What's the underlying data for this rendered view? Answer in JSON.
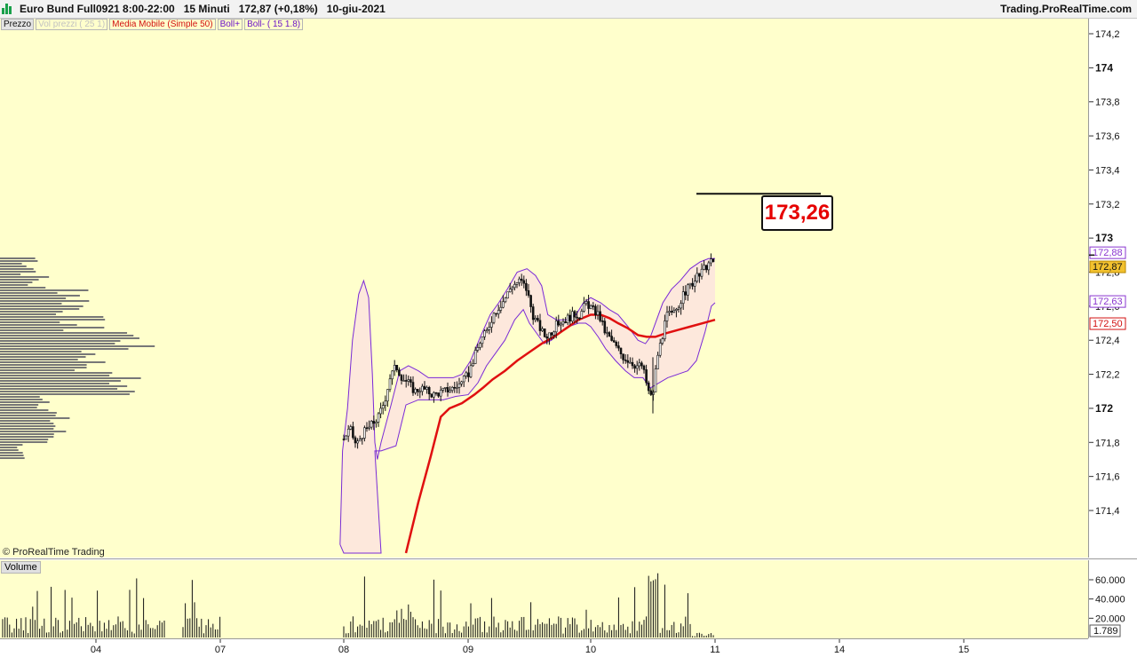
{
  "header": {
    "title": "Euro Bund Full0921 8:00-22:00   15 Minuti   172,87 (+0,18%)   10-giu-2021",
    "brand": "Trading.ProRealTime.com"
  },
  "legend": {
    "price": "Prezzo",
    "volume_profile": "Vol prezzi ( 25 1)",
    "moving_average": "Media Mobile (Simple 50)",
    "boll_plus": "Boll+",
    "boll_minus": "Boll- ( 15 1.8)"
  },
  "volume_panel_label": "Volume",
  "copyright": "© ProRealTime Trading",
  "target_label": "173,26",
  "chart_data": {
    "type": "candlestick",
    "y_ticks": [
      "174,2",
      "174",
      "173,8",
      "173,6",
      "173,4",
      "173,2",
      "173",
      "172,8",
      "172,6",
      "172,4",
      "172,2",
      "172",
      "171,8",
      "171,6",
      "171,4"
    ],
    "y_tick_values": [
      174.2,
      174.0,
      173.8,
      173.6,
      173.4,
      173.2,
      173.0,
      172.8,
      172.6,
      172.4,
      172.2,
      172.0,
      171.8,
      171.6,
      171.4
    ],
    "ylim": [
      171.15,
      174.3
    ],
    "x_ticks": [
      "04",
      "07",
      "08",
      "09",
      "10",
      "11",
      "14",
      "15"
    ],
    "x_tick_values": [
      0,
      1,
      2,
      3,
      4,
      5,
      6,
      7
    ],
    "xlim": [
      -0.75,
      8.0
    ],
    "price_labels": [
      {
        "text": "172,88",
        "value": 172.88,
        "series": "Boll+"
      },
      {
        "text": "172,87",
        "value": 172.87,
        "series": "Prezzo"
      },
      {
        "text": "172,63",
        "value": 172.63,
        "series": "Boll-"
      },
      {
        "text": "172,50",
        "value": 172.5,
        "series": "Media Mobile"
      }
    ],
    "target_level": {
      "value": 173.26,
      "x_from": 4.85,
      "x_to": 5.85
    },
    "close_path": [
      [
        2.0,
        171.82
      ],
      [
        2.05,
        171.88
      ],
      [
        2.1,
        171.78
      ],
      [
        2.15,
        171.85
      ],
      [
        2.22,
        171.9
      ],
      [
        2.28,
        171.95
      ],
      [
        2.33,
        172.05
      ],
      [
        2.37,
        172.18
      ],
      [
        2.42,
        172.25
      ],
      [
        2.47,
        172.18
      ],
      [
        2.52,
        172.15
      ],
      [
        2.57,
        172.1
      ],
      [
        2.62,
        172.12
      ],
      [
        2.67,
        172.1
      ],
      [
        2.72,
        172.08
      ],
      [
        2.8,
        172.1
      ],
      [
        2.88,
        172.12
      ],
      [
        2.95,
        172.15
      ],
      [
        3.0,
        172.2
      ],
      [
        3.05,
        172.3
      ],
      [
        3.1,
        172.4
      ],
      [
        3.15,
        172.45
      ],
      [
        3.2,
        172.55
      ],
      [
        3.25,
        172.6
      ],
      [
        3.3,
        172.65
      ],
      [
        3.35,
        172.72
      ],
      [
        3.42,
        172.75
      ],
      [
        3.47,
        172.7
      ],
      [
        3.52,
        172.55
      ],
      [
        3.57,
        172.48
      ],
      [
        3.62,
        172.42
      ],
      [
        3.67,
        172.45
      ],
      [
        3.72,
        172.5
      ],
      [
        3.78,
        172.52
      ],
      [
        3.85,
        172.55
      ],
      [
        3.9,
        172.55
      ],
      [
        3.95,
        172.62
      ],
      [
        4.0,
        172.58
      ],
      [
        4.05,
        172.55
      ],
      [
        4.1,
        172.45
      ],
      [
        4.15,
        172.4
      ],
      [
        4.2,
        172.35
      ],
      [
        4.25,
        172.3
      ],
      [
        4.3,
        172.28
      ],
      [
        4.35,
        172.25
      ],
      [
        4.4,
        172.25
      ],
      [
        4.45,
        172.1
      ],
      [
        4.48,
        172.05
      ],
      [
        4.52,
        172.3
      ],
      [
        4.56,
        172.42
      ],
      [
        4.6,
        172.55
      ],
      [
        4.65,
        172.55
      ],
      [
        4.7,
        172.62
      ],
      [
        4.76,
        172.7
      ],
      [
        4.82,
        172.75
      ],
      [
        4.88,
        172.8
      ],
      [
        4.93,
        172.85
      ],
      [
        5.0,
        172.87
      ]
    ],
    "boll_upper": [
      [
        1.97,
        171.2
      ],
      [
        1.99,
        171.75
      ],
      [
        2.03,
        172.0
      ],
      [
        2.07,
        172.4
      ],
      [
        2.12,
        172.67
      ],
      [
        2.16,
        172.75
      ],
      [
        2.2,
        172.65
      ],
      [
        2.23,
        172.2
      ],
      [
        2.25,
        171.8
      ],
      [
        2.27,
        171.7
      ],
      [
        2.3,
        171.8
      ],
      [
        2.38,
        172.02
      ],
      [
        2.45,
        172.22
      ],
      [
        2.52,
        172.25
      ],
      [
        2.6,
        172.22
      ],
      [
        2.68,
        172.18
      ],
      [
        2.78,
        172.18
      ],
      [
        2.88,
        172.18
      ],
      [
        2.95,
        172.2
      ],
      [
        3.02,
        172.28
      ],
      [
        3.1,
        172.42
      ],
      [
        3.18,
        172.55
      ],
      [
        3.25,
        172.62
      ],
      [
        3.32,
        172.7
      ],
      [
        3.4,
        172.8
      ],
      [
        3.48,
        172.82
      ],
      [
        3.55,
        172.78
      ],
      [
        3.6,
        172.72
      ],
      [
        3.65,
        172.55
      ],
      [
        3.72,
        172.52
      ],
      [
        3.8,
        172.52
      ],
      [
        3.88,
        172.55
      ],
      [
        3.94,
        172.62
      ],
      [
        4.0,
        172.65
      ],
      [
        4.08,
        172.62
      ],
      [
        4.15,
        172.58
      ],
      [
        4.22,
        172.55
      ],
      [
        4.3,
        172.48
      ],
      [
        4.38,
        172.4
      ],
      [
        4.44,
        172.38
      ],
      [
        4.48,
        172.42
      ],
      [
        4.52,
        172.5
      ],
      [
        4.58,
        172.62
      ],
      [
        4.65,
        172.7
      ],
      [
        4.72,
        172.75
      ],
      [
        4.8,
        172.82
      ],
      [
        4.88,
        172.86
      ],
      [
        4.95,
        172.88
      ],
      [
        5.0,
        172.88
      ]
    ],
    "boll_lower": [
      [
        1.97,
        171.2
      ],
      [
        2.0,
        171.15
      ],
      [
        2.3,
        171.15
      ],
      [
        2.25,
        171.75
      ],
      [
        2.3,
        171.75
      ],
      [
        2.42,
        171.78
      ],
      [
        2.5,
        172.02
      ],
      [
        2.6,
        172.05
      ],
      [
        2.7,
        172.05
      ],
      [
        2.8,
        172.05
      ],
      [
        2.9,
        172.07
      ],
      [
        3.0,
        172.08
      ],
      [
        3.08,
        172.15
      ],
      [
        3.15,
        172.25
      ],
      [
        3.22,
        172.32
      ],
      [
        3.3,
        172.4
      ],
      [
        3.38,
        172.52
      ],
      [
        3.45,
        172.58
      ],
      [
        3.5,
        172.5
      ],
      [
        3.55,
        172.45
      ],
      [
        3.62,
        172.38
      ],
      [
        3.68,
        172.4
      ],
      [
        3.75,
        172.45
      ],
      [
        3.82,
        172.48
      ],
      [
        3.9,
        172.5
      ],
      [
        3.96,
        172.5
      ],
      [
        4.0,
        172.48
      ],
      [
        4.06,
        172.42
      ],
      [
        4.12,
        172.35
      ],
      [
        4.2,
        172.28
      ],
      [
        4.28,
        172.22
      ],
      [
        4.35,
        172.18
      ],
      [
        4.42,
        172.18
      ],
      [
        4.48,
        172.12
      ],
      [
        4.55,
        172.15
      ],
      [
        4.62,
        172.18
      ],
      [
        4.7,
        172.2
      ],
      [
        4.78,
        172.22
      ],
      [
        4.85,
        172.28
      ],
      [
        4.92,
        172.45
      ],
      [
        4.97,
        172.6
      ],
      [
        5.0,
        172.62
      ]
    ],
    "moving_average": [
      [
        2.5,
        171.15
      ],
      [
        2.6,
        171.45
      ],
      [
        2.7,
        171.72
      ],
      [
        2.78,
        171.95
      ],
      [
        2.85,
        172.0
      ],
      [
        2.95,
        172.03
      ],
      [
        3.05,
        172.08
      ],
      [
        3.12,
        172.12
      ],
      [
        3.2,
        172.17
      ],
      [
        3.3,
        172.22
      ],
      [
        3.4,
        172.28
      ],
      [
        3.5,
        172.33
      ],
      [
        3.6,
        172.38
      ],
      [
        3.7,
        172.42
      ],
      [
        3.8,
        172.47
      ],
      [
        3.9,
        172.52
      ],
      [
        4.0,
        172.55
      ],
      [
        4.08,
        172.55
      ],
      [
        4.15,
        172.53
      ],
      [
        4.22,
        172.5
      ],
      [
        4.3,
        172.47
      ],
      [
        4.38,
        172.43
      ],
      [
        4.45,
        172.42
      ],
      [
        4.52,
        172.42
      ],
      [
        4.6,
        172.44
      ],
      [
        4.7,
        172.46
      ],
      [
        4.8,
        172.48
      ],
      [
        4.9,
        172.5
      ],
      [
        5.0,
        172.52
      ]
    ],
    "volume": {
      "y_ticks": [
        "60.000",
        "40.000",
        "20.000"
      ],
      "y_tick_values": [
        60000,
        40000,
        20000
      ],
      "ylim": [
        0,
        70000
      ],
      "last_value_label": "1.789",
      "last_value": 1789
    },
    "volume_profile": {
      "description_levels": "horizontal histogram at left edge between 171.7 and 172.92"
    }
  }
}
